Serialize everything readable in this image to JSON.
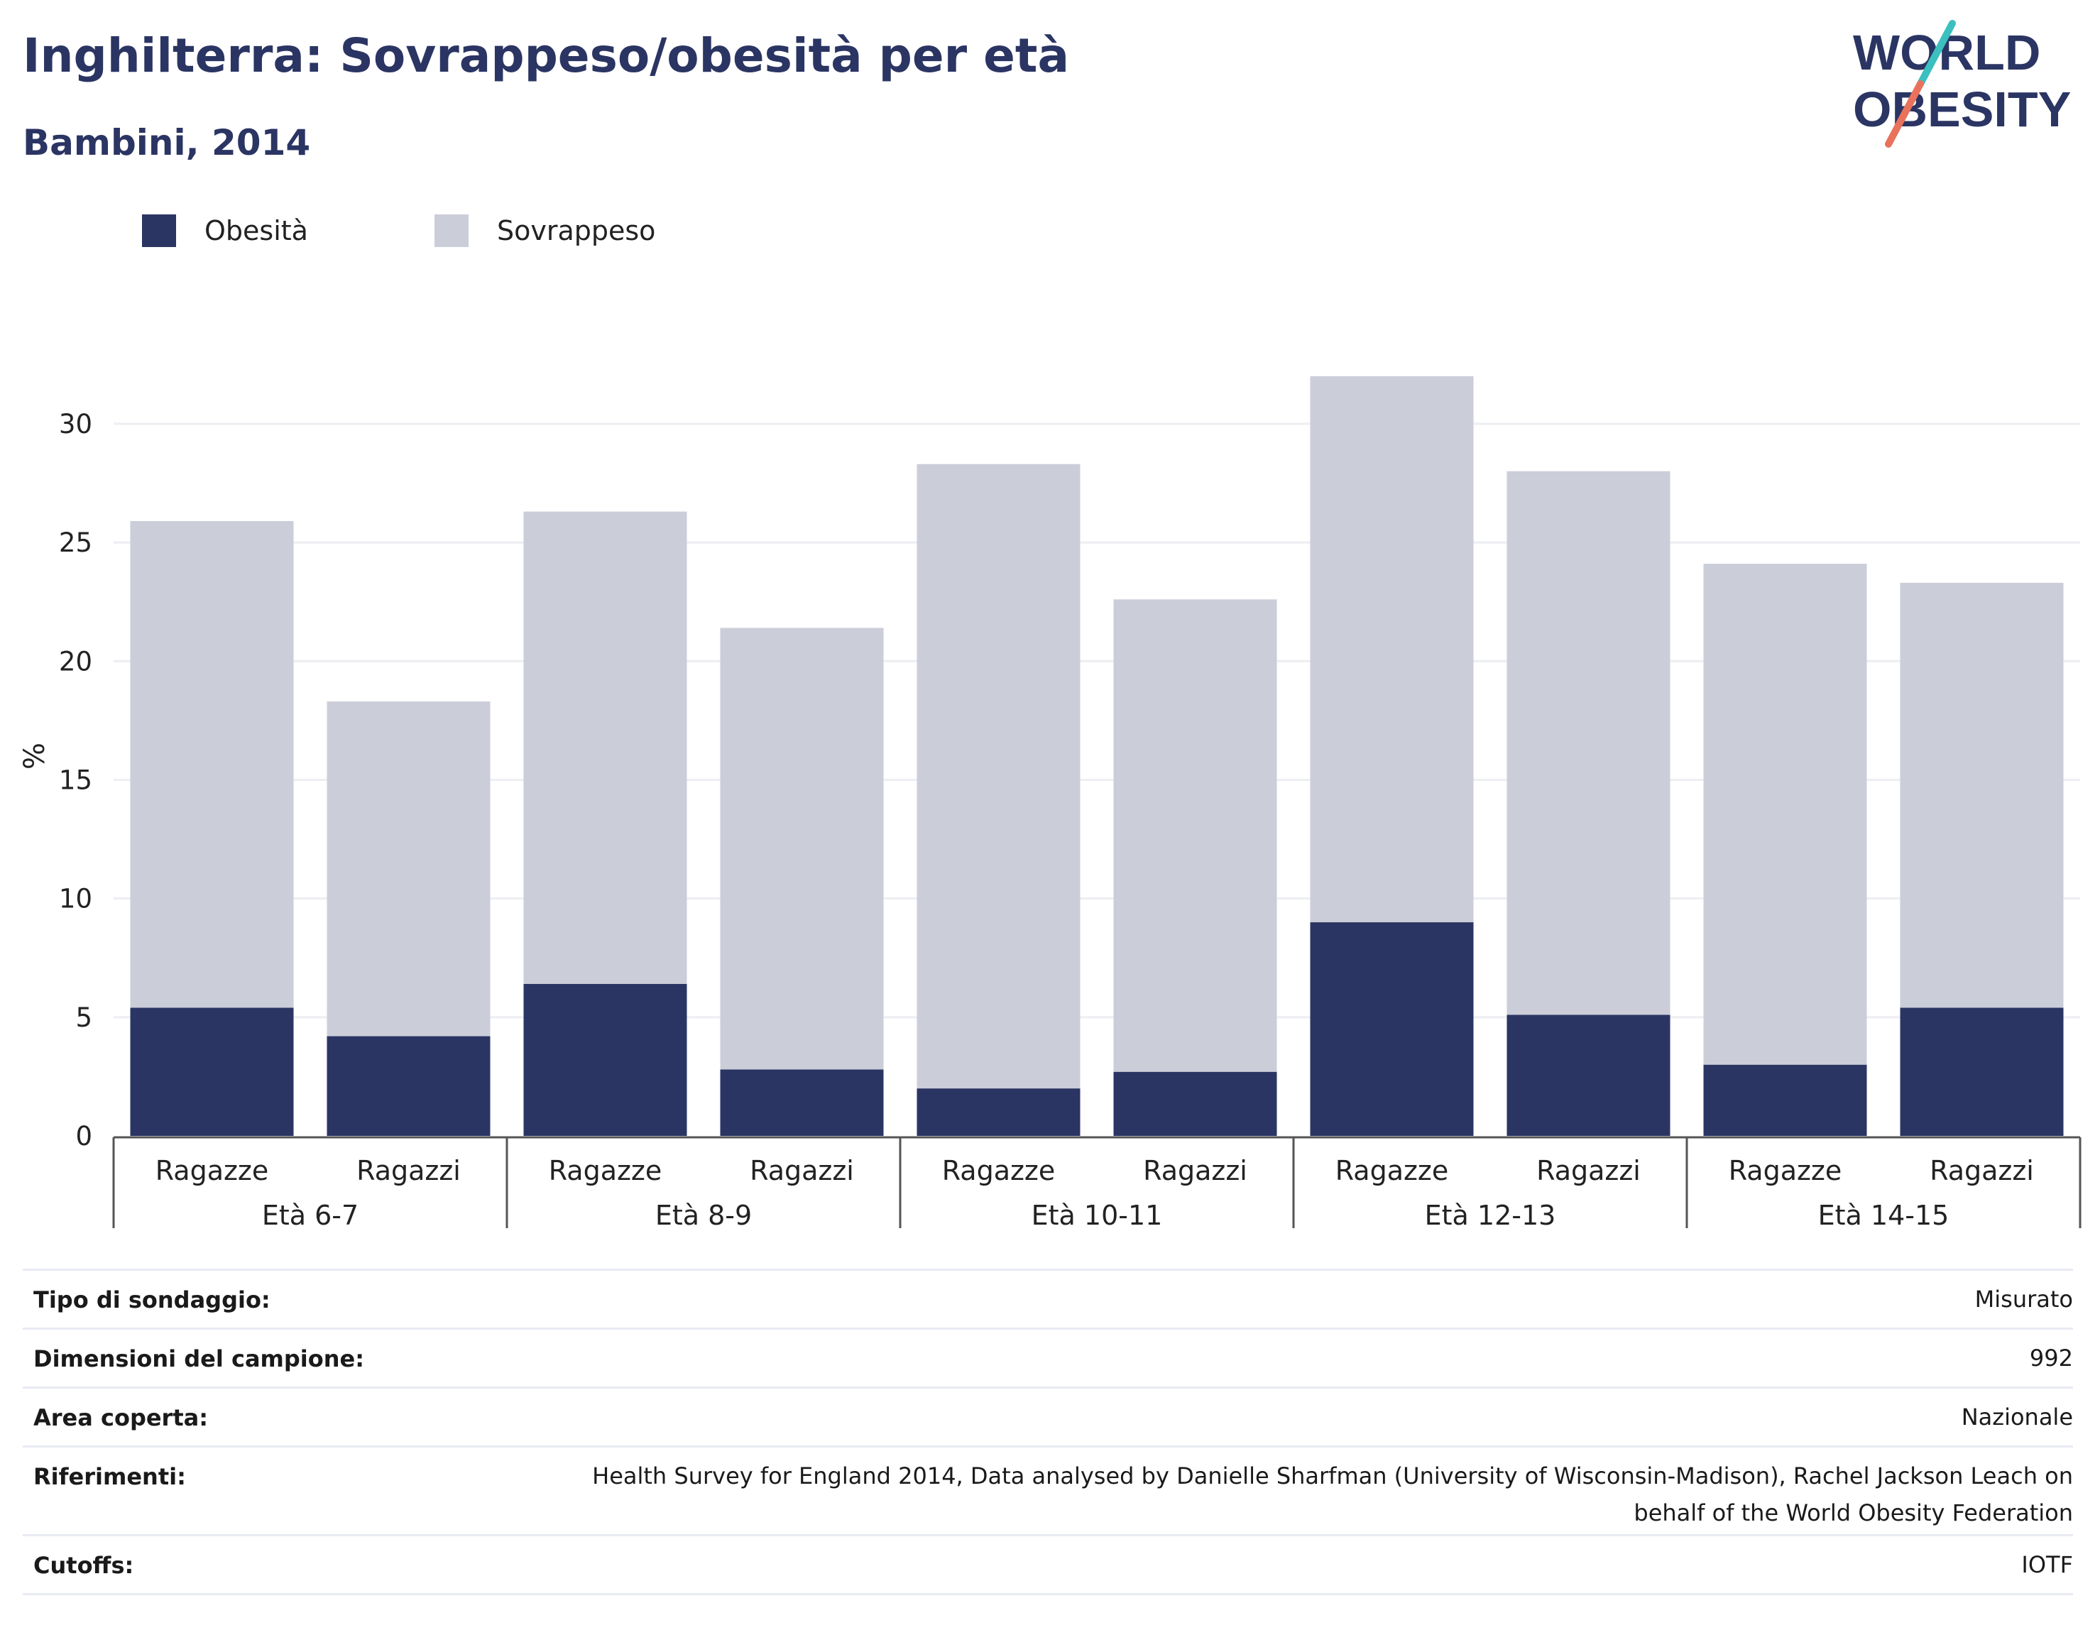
{
  "header": {
    "title": "Inghilterra: Sovrappeso/obesità per età",
    "subtitle": "Bambini, 2014"
  },
  "logo": {
    "line1": "WORLD",
    "line2": "OBESITY",
    "accent_teal": "#3cbfbf",
    "accent_orange": "#e8725c",
    "color": "#2b3563"
  },
  "legend": [
    {
      "label": "Obesità",
      "color": "#2b3563"
    },
    {
      "label": "Sovrappeso",
      "color": "#cbcdd9"
    }
  ],
  "chart_data": {
    "type": "bar",
    "stacked": true,
    "ylabel": "%",
    "ylim": [
      0,
      32
    ],
    "yticks": [
      0,
      5,
      10,
      15,
      20,
      25,
      30
    ],
    "grid": true,
    "legend_position": "top-left",
    "groups": [
      "Età 6-7",
      "Età 8-9",
      "Età 10-11",
      "Età 12-13",
      "Età 14-15"
    ],
    "subcategories": [
      "Ragazze",
      "Ragazzi"
    ],
    "series": [
      {
        "name": "Obesità",
        "color": "#2b3563",
        "values": [
          5.4,
          4.2,
          6.4,
          2.8,
          2.0,
          2.7,
          9.0,
          5.1,
          3.0,
          5.4
        ]
      },
      {
        "name": "Sovrappeso",
        "color": "#cbcdd9",
        "values": [
          20.5,
          14.1,
          19.9,
          18.6,
          26.3,
          19.9,
          23.0,
          22.9,
          21.1,
          17.9
        ]
      }
    ]
  },
  "footer": [
    {
      "label": "Tipo di sondaggio:",
      "value": "Misurato"
    },
    {
      "label": "Dimensioni del campione:",
      "value": "992"
    },
    {
      "label": "Area coperta:",
      "value": "Nazionale"
    },
    {
      "label": "Riferimenti:",
      "value_lines": [
        "Health Survey for England 2014, Data analysed by Danielle Sharfman (University of Wisconsin-Madison), Rachel Jackson Leach on",
        "behalf of the World Obesity Federation"
      ]
    },
    {
      "label": "Cutoffs:",
      "value": "IOTF"
    }
  ]
}
